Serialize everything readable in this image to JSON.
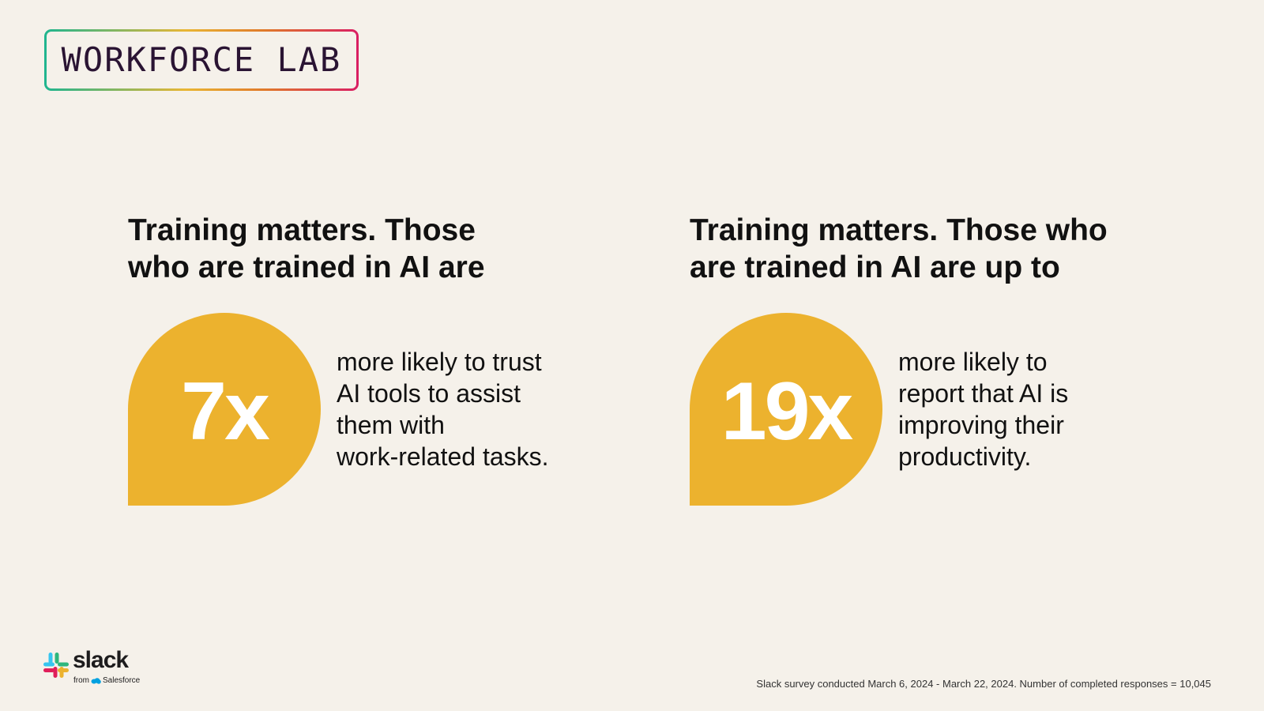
{
  "brand": {
    "title": "WORKFORCE LAB",
    "gradient_colors": [
      "#1fb58f",
      "#e9b634",
      "#e07a2a",
      "#d91e63"
    ]
  },
  "stats": [
    {
      "heading": "Training matters. Those who are trained in AI are",
      "value": "7x",
      "description_lines": [
        "more likely to trust",
        "AI tools to assist",
        "them with",
        "work-related tasks."
      ]
    },
    {
      "heading": "Training matters. Those who are trained in AI are up to",
      "value": "19x",
      "description_lines": [
        "more likely to",
        "report that AI is",
        "improving their",
        "productivity."
      ]
    }
  ],
  "logo": {
    "wordmark": "slack",
    "from_text": "from",
    "partner_text": "Salesforce",
    "icon": "slack-logo-icon"
  },
  "footnote": "Slack survey conducted March 6, 2024 - March 22, 2024. Number of completed responses = 10,045",
  "colors": {
    "background": "#f5f1ea",
    "accent_yellow": "#ecb22e",
    "text": "#111111"
  }
}
